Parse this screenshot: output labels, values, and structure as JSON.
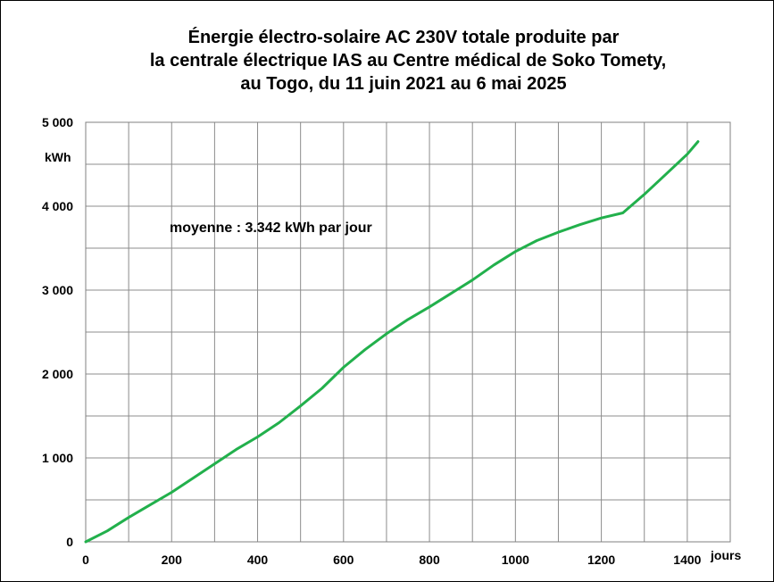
{
  "chart_data": {
    "type": "line",
    "title_lines": [
      "Énergie électro-solaire AC 230V  totale produite par",
      "la centrale électrique IAS  au Centre médical de Soko Tomety,",
      "au Togo, du 11 juin 2021 au 6 mai 2025"
    ],
    "xlabel": "jours",
    "ylabel": "kWh",
    "annotation": "moyenne : 3.342  kWh par jour",
    "xlim": [
      0,
      1500
    ],
    "ylim": [
      0,
      5000
    ],
    "x_ticks": [
      0,
      200,
      400,
      600,
      800,
      1000,
      1200,
      1400
    ],
    "x_tick_labels": [
      "0",
      "200",
      "400",
      "600",
      "800",
      "1000",
      "1200",
      "1400"
    ],
    "y_ticks": [
      0,
      1000,
      2000,
      3000,
      4000,
      5000
    ],
    "y_tick_labels": [
      "0",
      "1 000",
      "2 000",
      "3 000",
      "4 000",
      "5 000"
    ],
    "grid": true,
    "grid_x_step": 100,
    "grid_y_step": 500,
    "series": [
      {
        "color": "#22b04c",
        "x": [
          0,
          50,
          100,
          150,
          200,
          250,
          300,
          350,
          400,
          450,
          500,
          550,
          600,
          650,
          700,
          750,
          800,
          850,
          900,
          950,
          1000,
          1050,
          1100,
          1150,
          1200,
          1250,
          1300,
          1350,
          1400,
          1425
        ],
        "y": [
          0,
          130,
          290,
          440,
          590,
          760,
          930,
          1100,
          1250,
          1420,
          1620,
          1830,
          2080,
          2290,
          2480,
          2650,
          2800,
          2960,
          3120,
          3300,
          3460,
          3590,
          3690,
          3780,
          3860,
          3920,
          4140,
          4380,
          4620,
          4770
        ]
      }
    ]
  }
}
